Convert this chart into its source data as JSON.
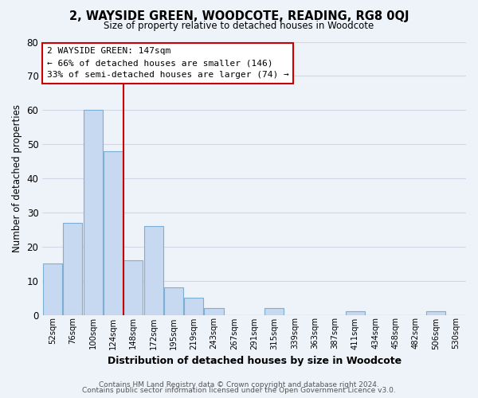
{
  "title": "2, WAYSIDE GREEN, WOODCOTE, READING, RG8 0QJ",
  "subtitle": "Size of property relative to detached houses in Woodcote",
  "xlabel": "Distribution of detached houses by size in Woodcote",
  "ylabel": "Number of detached properties",
  "footer_line1": "Contains HM Land Registry data © Crown copyright and database right 2024.",
  "footer_line2": "Contains public sector information licensed under the Open Government Licence v3.0.",
  "bar_labels": [
    "52sqm",
    "76sqm",
    "100sqm",
    "124sqm",
    "148sqm",
    "172sqm",
    "195sqm",
    "219sqm",
    "243sqm",
    "267sqm",
    "291sqm",
    "315sqm",
    "339sqm",
    "363sqm",
    "387sqm",
    "411sqm",
    "434sqm",
    "458sqm",
    "482sqm",
    "506sqm",
    "530sqm"
  ],
  "bar_values": [
    15,
    27,
    60,
    48,
    16,
    26,
    8,
    5,
    2,
    0,
    0,
    2,
    0,
    0,
    0,
    1,
    0,
    0,
    0,
    1,
    0
  ],
  "bar_color": "#c6d9f0",
  "bar_edge_color": "#7bafd4",
  "property_line_label": "2 WAYSIDE GREEN: 147sqm",
  "annotation_line1": "← 66% of detached houses are smaller (146)",
  "annotation_line2": "33% of semi-detached houses are larger (74) →",
  "annotation_box_color": "white",
  "annotation_box_edge_color": "#cc0000",
  "vline_color": "#cc0000",
  "ylim": [
    0,
    80
  ],
  "yticks": [
    0,
    10,
    20,
    30,
    40,
    50,
    60,
    70,
    80
  ],
  "grid_color": "#d0d8e8",
  "background_color": "#eef2f9"
}
